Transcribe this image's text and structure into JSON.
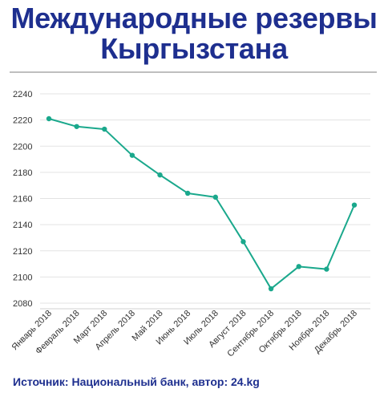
{
  "header": {
    "title_line1": "Международные резервы",
    "title_line2": "Кыргызстана"
  },
  "footer": {
    "source": "Источник: Национальный банк, автор: 24.kg"
  },
  "colors": {
    "title": "#1e2f8f",
    "line": "#1aa88c",
    "grid": "#e3e3e3"
  },
  "chart_data": {
    "type": "line",
    "title": "",
    "xlabel": "",
    "ylabel": "",
    "categories": [
      "Январь 2018",
      "Февраль 2018",
      "Март 2018",
      "Апрель 2018",
      "Май 2018",
      "Июнь 2018",
      "Июль 2018",
      "Август 2018",
      "Сентябрь 2018",
      "Октябрь 2018",
      "Ноябрь 2018",
      "Декабрь 2018"
    ],
    "series": [
      {
        "values": [
          2221,
          2215,
          2213,
          2193,
          2178,
          2164,
          2161,
          2127,
          2091,
          2108,
          2106,
          2155
        ]
      }
    ],
    "yticks": [
      2080,
      2100,
      2120,
      2140,
      2160,
      2180,
      2200,
      2220,
      2240
    ],
    "ylim": [
      2075,
      2245
    ],
    "grid": true,
    "legend": "none"
  }
}
